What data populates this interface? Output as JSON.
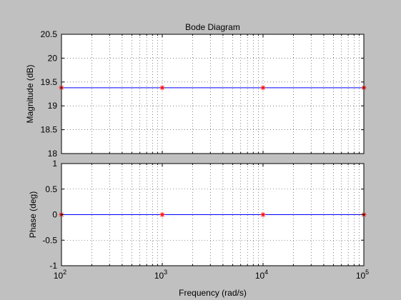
{
  "chart_data": [
    {
      "type": "line",
      "title": "Bode Diagram",
      "xlabel": "",
      "ylabel": "Magnitude (dB)",
      "xscale": "log",
      "xlim": [
        100,
        100000
      ],
      "ylim": [
        18,
        20.5
      ],
      "yticks": [
        "18",
        "18.5",
        "19",
        "19.5",
        "20",
        "20.5"
      ],
      "grid": true,
      "series": [
        {
          "color": "#0000ff",
          "x": [
            100,
            1000,
            10000,
            100000
          ],
          "y": [
            19.38,
            19.38,
            19.38,
            19.38
          ]
        },
        {
          "color": "#ff0000",
          "marker": "star",
          "x": [
            100,
            1000,
            10000,
            100000
          ],
          "y": [
            19.38,
            19.38,
            19.38,
            19.38
          ]
        }
      ]
    },
    {
      "type": "line",
      "title": "",
      "xlabel": "Frequency  (rad/s)",
      "ylabel": "Phase (deg)",
      "xscale": "log",
      "xlim": [
        100,
        100000
      ],
      "ylim": [
        -1,
        1
      ],
      "yticks": [
        "-1",
        "-0.5",
        "0",
        "0.5",
        "1"
      ],
      "xticks": [
        {
          "base": "10",
          "exp": "2"
        },
        {
          "base": "10",
          "exp": "3"
        },
        {
          "base": "10",
          "exp": "4"
        },
        {
          "base": "10",
          "exp": "5"
        }
      ],
      "grid": true,
      "series": [
        {
          "color": "#0000ff",
          "x": [
            100,
            1000,
            10000,
            100000
          ],
          "y": [
            0,
            0,
            0,
            0
          ]
        },
        {
          "color": "#ff0000",
          "marker": "star",
          "x": [
            100,
            1000,
            10000,
            100000
          ],
          "y": [
            0,
            0,
            0,
            0
          ]
        }
      ]
    }
  ]
}
